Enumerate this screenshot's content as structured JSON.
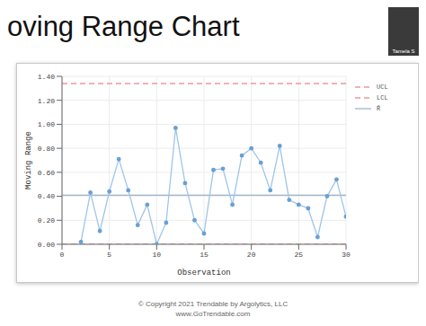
{
  "chart_data": {
    "type": "line",
    "title": "oving Range Chart",
    "x_label": "Observation",
    "y_label": "Moving Range",
    "x": [
      2,
      3,
      4,
      5,
      6,
      7,
      8,
      9,
      10,
      11,
      12,
      13,
      14,
      15,
      16,
      17,
      18,
      19,
      20,
      21,
      22,
      23,
      24,
      25,
      26,
      27,
      28,
      29,
      30
    ],
    "values": [
      0.02,
      0.43,
      0.11,
      0.44,
      0.71,
      0.45,
      0.16,
      0.33,
      0.0,
      0.18,
      0.97,
      0.51,
      0.2,
      0.09,
      0.62,
      0.63,
      0.33,
      0.74,
      0.8,
      0.68,
      0.45,
      0.82,
      0.37,
      0.33,
      0.3,
      0.06,
      0.4,
      0.54,
      0.23
    ],
    "color": "#9ec5e8",
    "marker": "circle",
    "xlim": [
      0,
      30
    ],
    "xticks": [
      0,
      5,
      10,
      15,
      20,
      25,
      30
    ],
    "ylim": [
      0,
      1.4
    ],
    "yticks": [
      {
        "value": 0,
        "label": "0.00"
      },
      {
        "value": 0.2,
        "label": "0.20"
      },
      {
        "value": 0.4,
        "label": "0.40"
      },
      {
        "value": 0.6,
        "label": "0.60"
      },
      {
        "value": 0.8,
        "label": "0.80"
      },
      {
        "value": 1.0,
        "label": "1.00"
      },
      {
        "value": 1.2,
        "label": "1.20"
      },
      {
        "value": 1.4,
        "label": "1.40"
      }
    ],
    "grid": true,
    "legend": "right",
    "reference_lines": [
      {
        "name": "UCL",
        "value": 1.34,
        "color": "#e06666",
        "line_style": "dashed"
      },
      {
        "name": "LCL",
        "value": 0,
        "color": "#e06666",
        "line_style": "dashed"
      },
      {
        "name": "R̄",
        "value": 0.41,
        "color": "#7f9fbf",
        "line_style": "solid"
      }
    ]
  },
  "presenter": "Tamela S",
  "footer": [
    "© Copyright 2021  Trendable by Argolytics, LLC",
    "www.GoTrendable.com"
  ]
}
